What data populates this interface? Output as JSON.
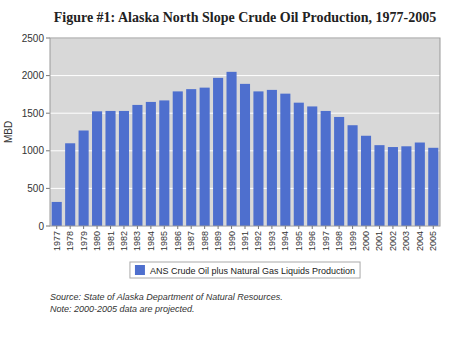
{
  "chart_data": {
    "type": "bar",
    "title": "Figure #1: Alaska North Slope Crude Oil Production, 1977-2005",
    "ylabel": "MBD",
    "annotations": [
      "Source: State of Alaska Department of Natural Resources.\nNote: 2000-2005 data are projected."
    ],
    "categories": [
      "1977",
      "1978",
      "1979",
      "1980",
      "1981",
      "1982",
      "1983",
      "1984",
      "1985",
      "1986",
      "1987",
      "1988",
      "1989",
      "1990",
      "1991",
      "1992",
      "1993",
      "1994",
      "1995",
      "1996",
      "1997",
      "1998",
      "1999",
      "2000",
      "2001",
      "2002",
      "2003",
      "2004",
      "2005"
    ],
    "series": [
      {
        "name": "ANS Crude Oil plus Natural Gas Liquids Production",
        "color": "#4e6fce",
        "values": [
          320,
          1100,
          1270,
          1525,
          1530,
          1530,
          1610,
          1650,
          1670,
          1790,
          1820,
          1840,
          1970,
          2050,
          1890,
          1790,
          1810,
          1760,
          1640,
          1590,
          1530,
          1450,
          1340,
          1200,
          1075,
          1050,
          1060,
          1110,
          1040
        ]
      }
    ],
    "ylim": [
      0,
      2500
    ],
    "yticks": [
      0,
      500,
      1000,
      1500,
      2000,
      2500
    ],
    "grid": true,
    "legend": "bottom"
  }
}
